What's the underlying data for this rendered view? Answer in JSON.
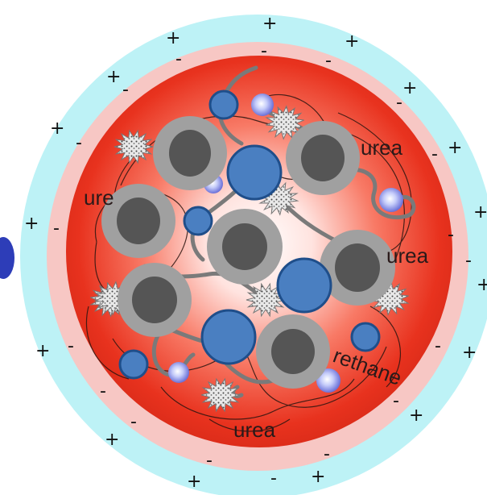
{
  "labels": {
    "urea_top": "urea",
    "ure_left": "ure",
    "urea_right": "urea",
    "urethane": "rethane",
    "urea_bottom": "urea"
  },
  "charges": {
    "positive": "+",
    "negative": "-"
  },
  "colors": {
    "outer_halo": "#bdf2f6",
    "mid_ring": "#f7c7c4",
    "core_edge": "#e8321e",
    "core_center": "#ffecea",
    "particle_ring": "#a0a0a0",
    "particle_core": "#555555",
    "blue_bead": "#4a7fc1",
    "polymer_line": "#7a7a7a"
  },
  "icons": {
    "additive": "spiky-particle-icon",
    "small_sphere": "glowing-sphere-icon"
  }
}
